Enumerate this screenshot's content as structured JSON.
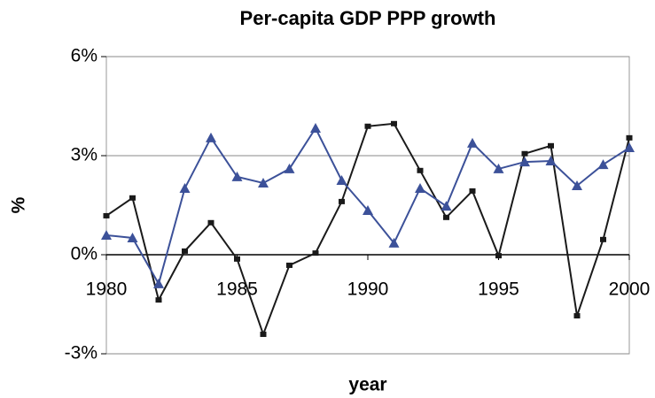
{
  "chart_data": {
    "type": "line",
    "title": "Per-capita GDP PPP growth",
    "x_label": "year",
    "y_label": "%",
    "x": [
      1980,
      1981,
      1982,
      1983,
      1984,
      1985,
      1986,
      1987,
      1988,
      1989,
      1990,
      1991,
      1992,
      1993,
      1994,
      1995,
      1996,
      1997,
      1998,
      1999,
      2000
    ],
    "xlim": [
      1980,
      2000
    ],
    "xticks": [
      1980,
      1985,
      1990,
      1995,
      2000
    ],
    "ylim": [
      -3,
      6
    ],
    "yticks": [
      {
        "value": -3,
        "label": "-3%"
      },
      {
        "value": 0,
        "label": "0%"
      },
      {
        "value": 3,
        "label": "3%"
      },
      {
        "value": 6,
        "label": "6%"
      }
    ],
    "grid": true,
    "series": [
      {
        "color": "#1a1a1a",
        "marker": "square",
        "values": [
          1.18,
          1.72,
          -1.37,
          0.11,
          0.97,
          -0.13,
          -2.41,
          -0.32,
          0.05,
          1.61,
          3.89,
          3.97,
          2.55,
          1.13,
          1.93,
          -0.03,
          3.06,
          3.3,
          -1.85,
          0.46,
          3.54
        ]
      },
      {
        "color": "#3c5199",
        "marker": "triangle",
        "values": [
          0.59,
          0.51,
          -0.88,
          2.01,
          3.54,
          2.36,
          2.17,
          2.6,
          3.83,
          2.25,
          1.34,
          0.35,
          2.01,
          1.47,
          3.38,
          2.6,
          2.81,
          2.84,
          2.09,
          2.73,
          3.24
        ]
      }
    ]
  }
}
